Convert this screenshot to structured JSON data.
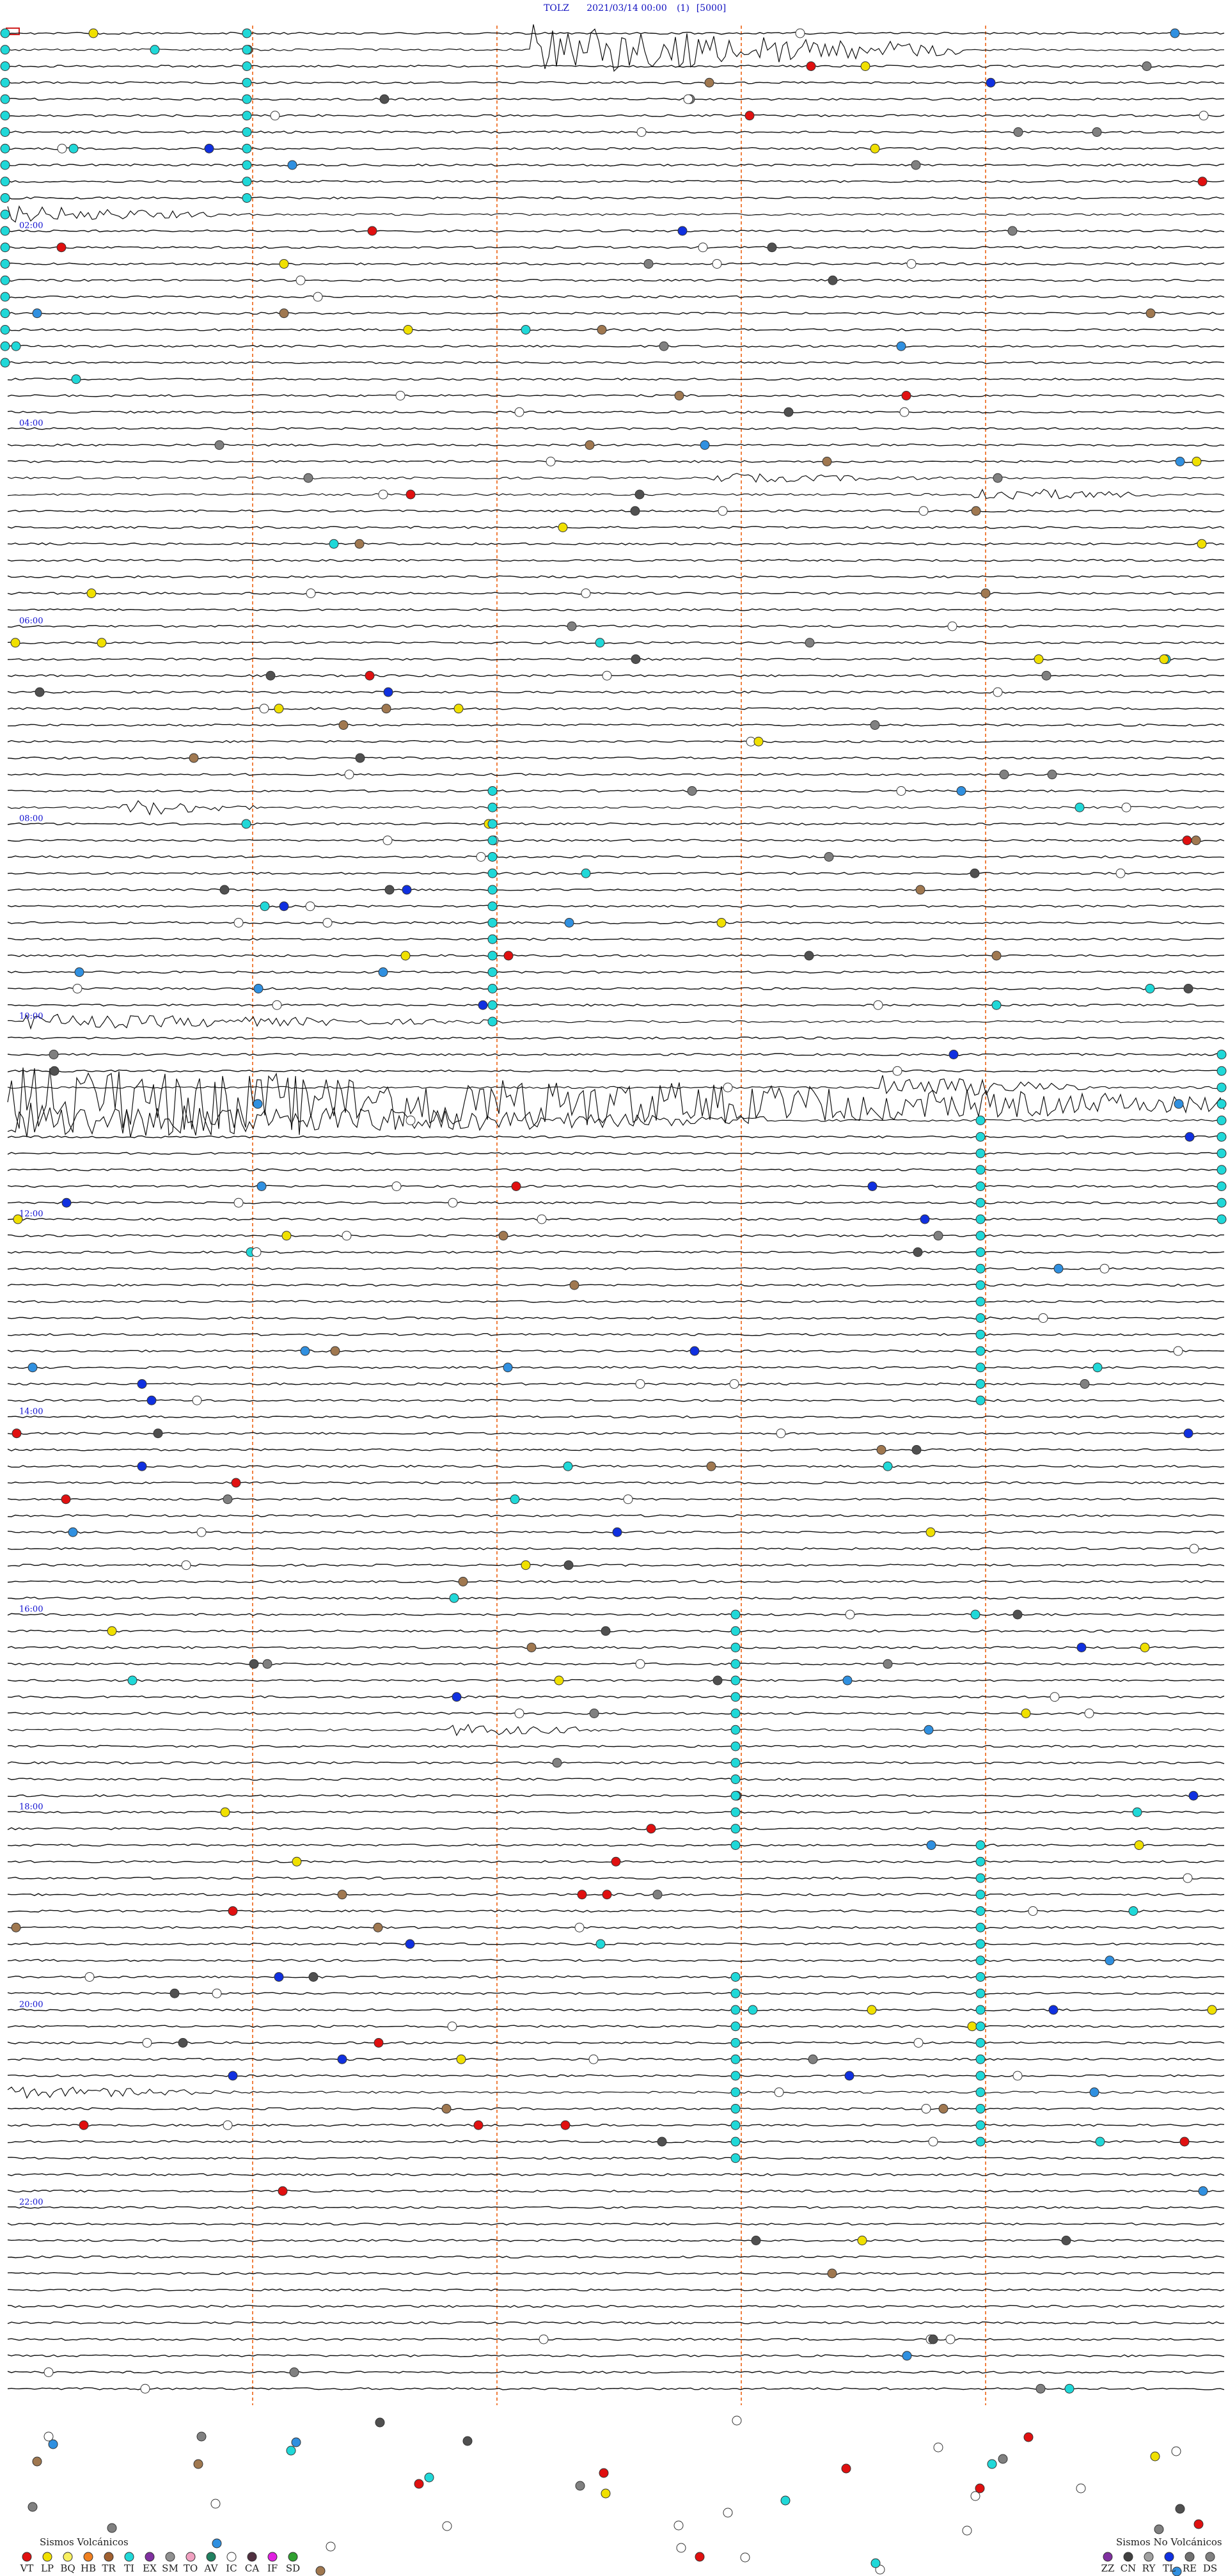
{
  "header": {
    "station": "TOLZ",
    "start": "2021/03/14 00:00",
    "channel": "(1)",
    "scale": "[5000]"
  },
  "time_labels": [
    "02:00",
    "04:00",
    "06:00",
    "08:00",
    "10:00",
    "12:00",
    "14:00",
    "16:00",
    "18:00",
    "20:00",
    "22:00"
  ],
  "legend": {
    "volcanic": {
      "title": "Sismos Volcánicos",
      "types": [
        {
          "code": "VT",
          "color": "#e01010"
        },
        {
          "code": "LP",
          "color": "#f0e000"
        },
        {
          "code": "BQ",
          "color": "#f8f060"
        },
        {
          "code": "HB",
          "color": "#f08020"
        },
        {
          "code": "TR",
          "color": "#a06030"
        },
        {
          "code": "TI",
          "color": "#20d8d8"
        },
        {
          "code": "EX",
          "color": "#8030a0"
        },
        {
          "code": "SM",
          "color": "#909090"
        },
        {
          "code": "TO",
          "color": "#f0a0c0"
        },
        {
          "code": "AV",
          "color": "#208060"
        },
        {
          "code": "IC",
          "color": "#ffffff"
        },
        {
          "code": "CA",
          "color": "#503040"
        },
        {
          "code": "IF",
          "color": "#e020e0"
        },
        {
          "code": "SD",
          "color": "#30a030"
        }
      ]
    },
    "non_volcanic": {
      "title": "Sismos No Volcánicos",
      "types": [
        {
          "code": "ZZ",
          "color": "#8030a0"
        },
        {
          "code": "CN",
          "color": "#404040"
        },
        {
          "code": "RY",
          "color": "#a0a0a0"
        },
        {
          "code": "TL",
          "color": "#1030e0"
        },
        {
          "code": "RE",
          "color": "#707070"
        },
        {
          "code": "DS",
          "color": "#808080"
        }
      ]
    }
  }
}
